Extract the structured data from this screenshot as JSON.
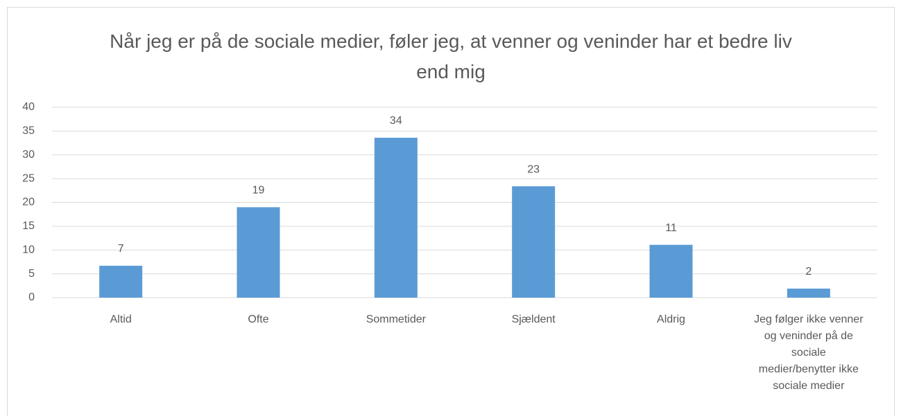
{
  "chart_data": {
    "type": "bar",
    "title": "Når jeg er på de sociale medier, føler jeg, at venner og veninder har et bedre liv end mig",
    "categories": [
      "Altid",
      "Ofte",
      "Sommetider",
      "Sjældent",
      "Aldrig",
      "Jeg følger ikke venner og veninder på de sociale medier/benytter ikke sociale medier"
    ],
    "values": [
      6.7,
      19,
      33.6,
      23.4,
      11.1,
      1.9
    ],
    "value_labels": [
      "7",
      "19",
      "34",
      "23",
      "11",
      "2"
    ],
    "color": "#5b9bd5",
    "ylim": [
      0,
      40
    ],
    "yticks": [
      0,
      5,
      10,
      15,
      20,
      25,
      30,
      35,
      40
    ],
    "grid": true
  }
}
